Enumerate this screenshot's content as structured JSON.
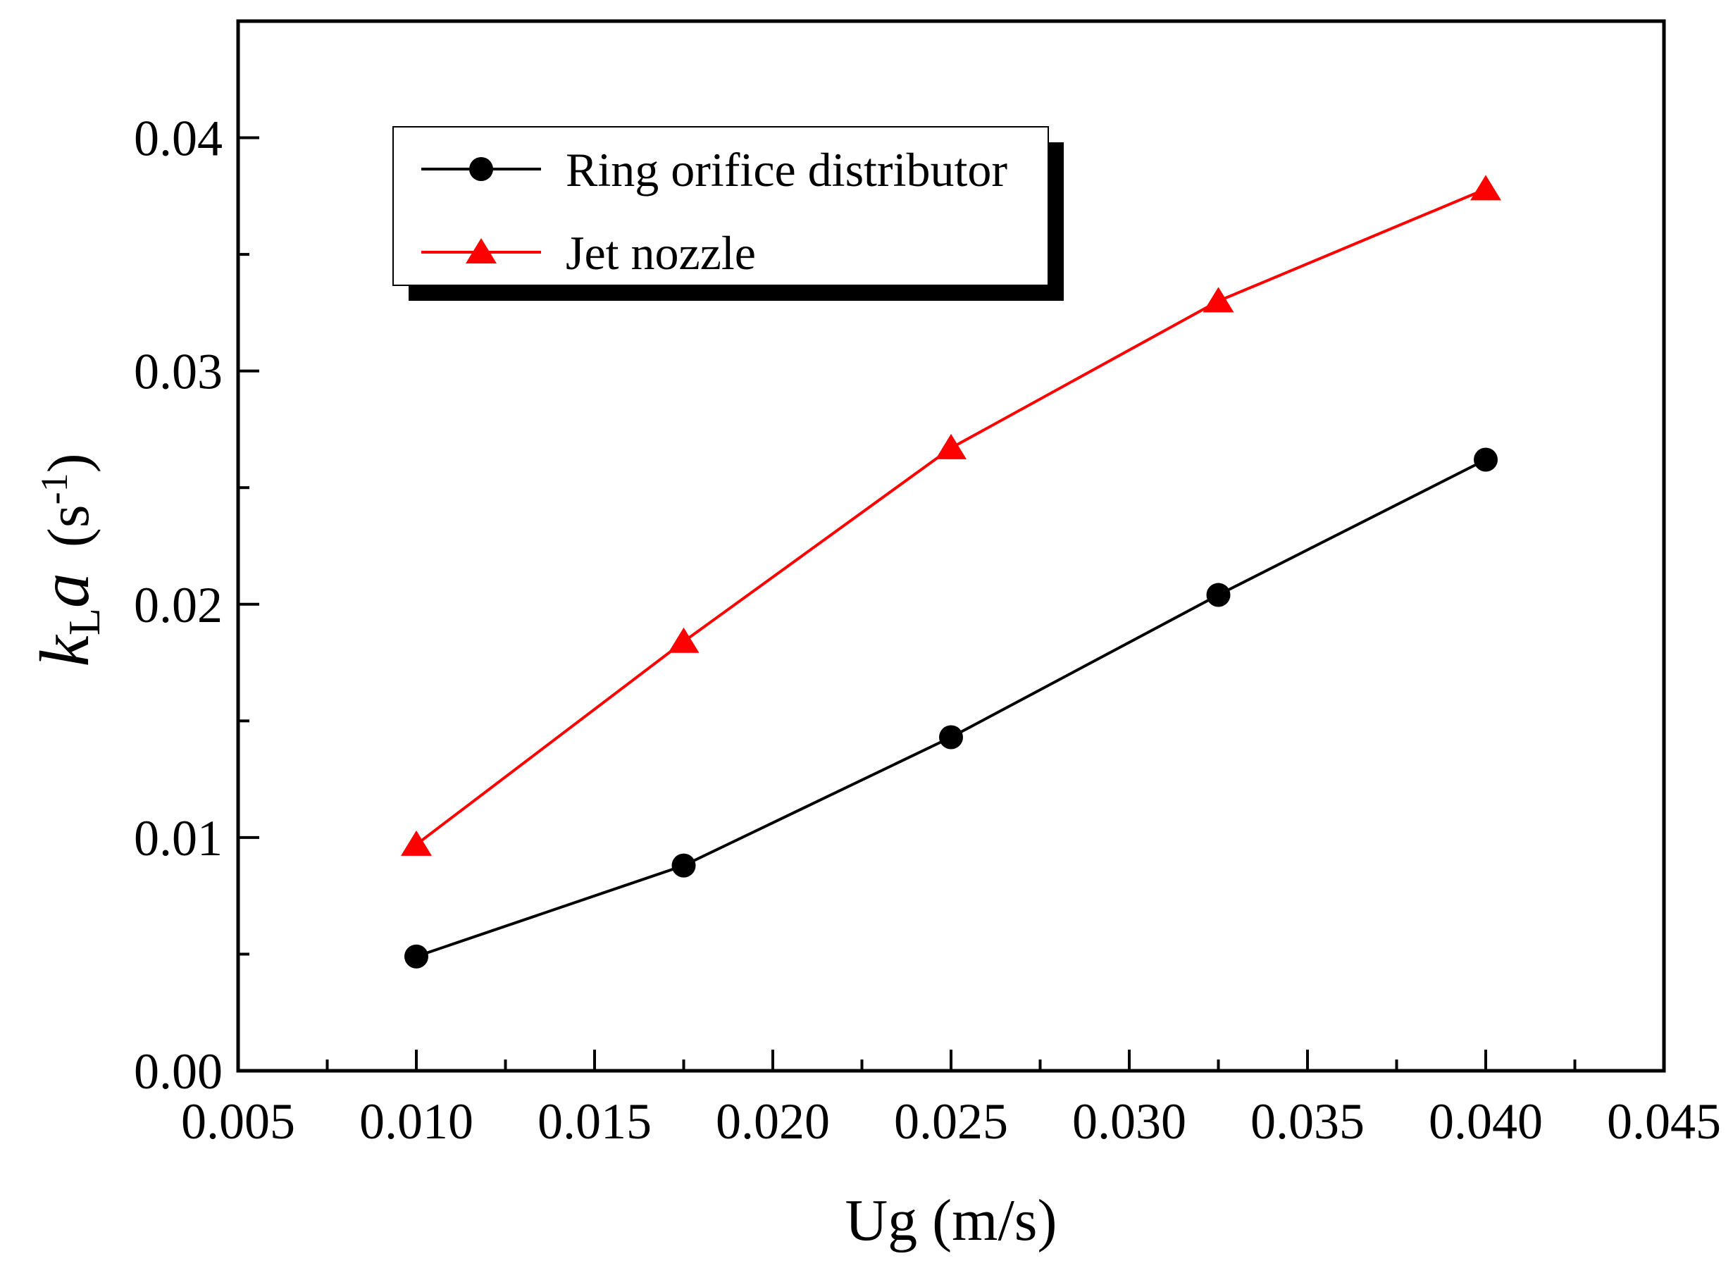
{
  "chart_data": {
    "type": "line",
    "xlabel": "Ug (m/s)",
    "ylabel": {
      "main": "k",
      "sub": "L",
      "italic": "a",
      "unit_open": "(s",
      "unit_sup": "-1",
      "unit_close": ")"
    },
    "xlim": [
      0.005,
      0.045
    ],
    "ylim": [
      0.0,
      0.045
    ],
    "xticks": [
      {
        "value": 0.005,
        "label": "0.005"
      },
      {
        "value": 0.01,
        "label": "0.010"
      },
      {
        "value": 0.015,
        "label": "0.015"
      },
      {
        "value": 0.02,
        "label": "0.020"
      },
      {
        "value": 0.025,
        "label": "0.025"
      },
      {
        "value": 0.03,
        "label": "0.030"
      },
      {
        "value": 0.035,
        "label": "0.035"
      },
      {
        "value": 0.04,
        "label": "0.040"
      },
      {
        "value": 0.045,
        "label": "0.045"
      }
    ],
    "yticks": [
      {
        "value": 0.0,
        "label": "0.00"
      },
      {
        "value": 0.01,
        "label": "0.01"
      },
      {
        "value": 0.02,
        "label": "0.02"
      },
      {
        "value": 0.03,
        "label": "0.03"
      },
      {
        "value": 0.04,
        "label": "0.04"
      }
    ],
    "x_minor_step": 0.0025,
    "y_minor_step": 0.005,
    "grid": false,
    "legend_position": "top-left",
    "series": [
      {
        "name": "Ring orifice distributor",
        "color": "#000000",
        "marker": "circle",
        "x": [
          0.01,
          0.0175,
          0.025,
          0.0325,
          0.04
        ],
        "y": [
          0.0049,
          0.0088,
          0.0143,
          0.0204,
          0.0262
        ]
      },
      {
        "name": "Jet nozzle",
        "color": "#ff0000",
        "marker": "triangle",
        "x": [
          0.01,
          0.0175,
          0.025,
          0.0325,
          0.04
        ],
        "y": [
          0.0097,
          0.0184,
          0.0267,
          0.033,
          0.0378
        ]
      }
    ]
  }
}
